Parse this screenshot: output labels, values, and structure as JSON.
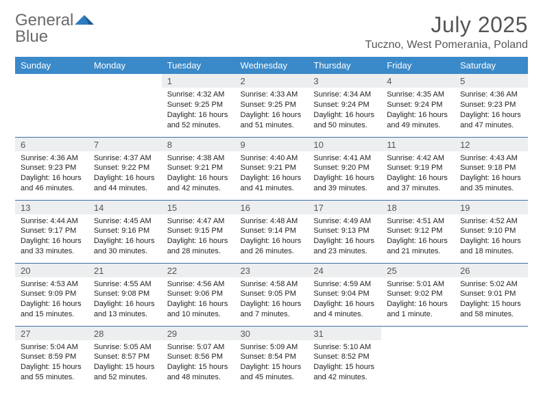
{
  "logo": {
    "word1": "General",
    "word2": "Blue"
  },
  "header": {
    "month_title": "July 2025",
    "location": "Tuczno, West Pomerania, Poland"
  },
  "colors": {
    "header_band": "#3a89c9",
    "header_text": "#ffffff",
    "daynum_bg": "#eceef0",
    "rule": "#3a6fa0",
    "logo_gray": "#6a6a6a",
    "logo_blue": "#2d7bc0",
    "body_text": "#222222"
  },
  "weekdays": [
    "Sunday",
    "Monday",
    "Tuesday",
    "Wednesday",
    "Thursday",
    "Friday",
    "Saturday"
  ],
  "weeks": [
    [
      null,
      null,
      {
        "n": "1",
        "sr": "4:32 AM",
        "ss": "9:25 PM",
        "dl": "16 hours and 52 minutes."
      },
      {
        "n": "2",
        "sr": "4:33 AM",
        "ss": "9:25 PM",
        "dl": "16 hours and 51 minutes."
      },
      {
        "n": "3",
        "sr": "4:34 AM",
        "ss": "9:24 PM",
        "dl": "16 hours and 50 minutes."
      },
      {
        "n": "4",
        "sr": "4:35 AM",
        "ss": "9:24 PM",
        "dl": "16 hours and 49 minutes."
      },
      {
        "n": "5",
        "sr": "4:36 AM",
        "ss": "9:23 PM",
        "dl": "16 hours and 47 minutes."
      }
    ],
    [
      {
        "n": "6",
        "sr": "4:36 AM",
        "ss": "9:23 PM",
        "dl": "16 hours and 46 minutes."
      },
      {
        "n": "7",
        "sr": "4:37 AM",
        "ss": "9:22 PM",
        "dl": "16 hours and 44 minutes."
      },
      {
        "n": "8",
        "sr": "4:38 AM",
        "ss": "9:21 PM",
        "dl": "16 hours and 42 minutes."
      },
      {
        "n": "9",
        "sr": "4:40 AM",
        "ss": "9:21 PM",
        "dl": "16 hours and 41 minutes."
      },
      {
        "n": "10",
        "sr": "4:41 AM",
        "ss": "9:20 PM",
        "dl": "16 hours and 39 minutes."
      },
      {
        "n": "11",
        "sr": "4:42 AM",
        "ss": "9:19 PM",
        "dl": "16 hours and 37 minutes."
      },
      {
        "n": "12",
        "sr": "4:43 AM",
        "ss": "9:18 PM",
        "dl": "16 hours and 35 minutes."
      }
    ],
    [
      {
        "n": "13",
        "sr": "4:44 AM",
        "ss": "9:17 PM",
        "dl": "16 hours and 33 minutes."
      },
      {
        "n": "14",
        "sr": "4:45 AM",
        "ss": "9:16 PM",
        "dl": "16 hours and 30 minutes."
      },
      {
        "n": "15",
        "sr": "4:47 AM",
        "ss": "9:15 PM",
        "dl": "16 hours and 28 minutes."
      },
      {
        "n": "16",
        "sr": "4:48 AM",
        "ss": "9:14 PM",
        "dl": "16 hours and 26 minutes."
      },
      {
        "n": "17",
        "sr": "4:49 AM",
        "ss": "9:13 PM",
        "dl": "16 hours and 23 minutes."
      },
      {
        "n": "18",
        "sr": "4:51 AM",
        "ss": "9:12 PM",
        "dl": "16 hours and 21 minutes."
      },
      {
        "n": "19",
        "sr": "4:52 AM",
        "ss": "9:10 PM",
        "dl": "16 hours and 18 minutes."
      }
    ],
    [
      {
        "n": "20",
        "sr": "4:53 AM",
        "ss": "9:09 PM",
        "dl": "16 hours and 15 minutes."
      },
      {
        "n": "21",
        "sr": "4:55 AM",
        "ss": "9:08 PM",
        "dl": "16 hours and 13 minutes."
      },
      {
        "n": "22",
        "sr": "4:56 AM",
        "ss": "9:06 PM",
        "dl": "16 hours and 10 minutes."
      },
      {
        "n": "23",
        "sr": "4:58 AM",
        "ss": "9:05 PM",
        "dl": "16 hours and 7 minutes."
      },
      {
        "n": "24",
        "sr": "4:59 AM",
        "ss": "9:04 PM",
        "dl": "16 hours and 4 minutes."
      },
      {
        "n": "25",
        "sr": "5:01 AM",
        "ss": "9:02 PM",
        "dl": "16 hours and 1 minute."
      },
      {
        "n": "26",
        "sr": "5:02 AM",
        "ss": "9:01 PM",
        "dl": "15 hours and 58 minutes."
      }
    ],
    [
      {
        "n": "27",
        "sr": "5:04 AM",
        "ss": "8:59 PM",
        "dl": "15 hours and 55 minutes."
      },
      {
        "n": "28",
        "sr": "5:05 AM",
        "ss": "8:57 PM",
        "dl": "15 hours and 52 minutes."
      },
      {
        "n": "29",
        "sr": "5:07 AM",
        "ss": "8:56 PM",
        "dl": "15 hours and 48 minutes."
      },
      {
        "n": "30",
        "sr": "5:09 AM",
        "ss": "8:54 PM",
        "dl": "15 hours and 45 minutes."
      },
      {
        "n": "31",
        "sr": "5:10 AM",
        "ss": "8:52 PM",
        "dl": "15 hours and 42 minutes."
      },
      null,
      null
    ]
  ],
  "labels": {
    "sunrise": "Sunrise:",
    "sunset": "Sunset:",
    "daylight": "Daylight:"
  }
}
